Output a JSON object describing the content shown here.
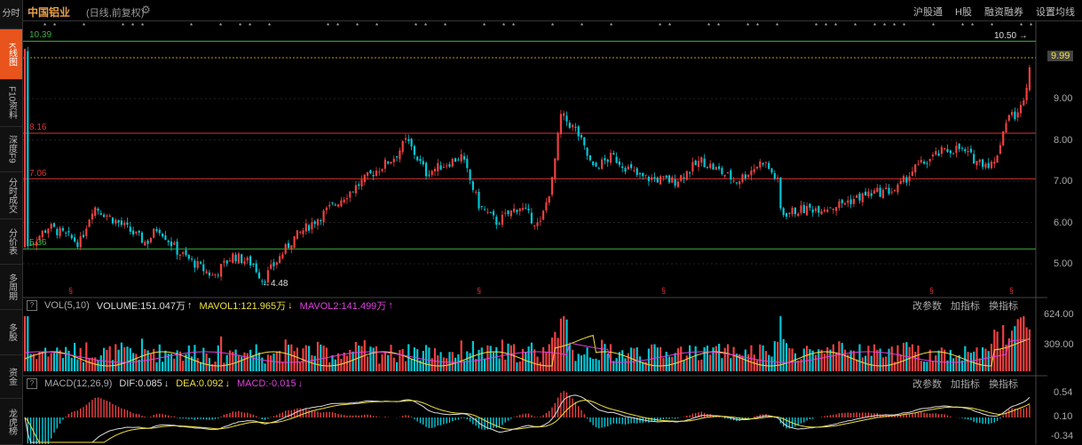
{
  "sidebar": {
    "items": [
      {
        "label": "分时",
        "active": false
      },
      {
        "label": "K线图",
        "active": true
      },
      {
        "label": "F10资料",
        "active": false
      },
      {
        "label": "深度F9",
        "active": false
      },
      {
        "label": "分时成交",
        "active": false
      },
      {
        "label": "分价表",
        "active": false
      },
      {
        "label": "多周期",
        "active": false
      },
      {
        "label": "多股",
        "active": false
      },
      {
        "label": "资金",
        "active": false
      },
      {
        "label": "龙虎榜",
        "active": false
      }
    ]
  },
  "header": {
    "stock_name": "中国铝业",
    "period_info": "(日线,前复权)",
    "right_items": [
      "沪股通",
      "H股",
      "融资融券",
      "设置均线"
    ]
  },
  "price_chart": {
    "y_ticks": [
      "9.00",
      "8.00",
      "7.00",
      "6.00",
      "5.00"
    ],
    "current_price": "9.99",
    "high_label": "10.50",
    "low_label": "4.48",
    "level_lines": [
      {
        "value": "10.39",
        "color": "#3cb043"
      },
      {
        "value": "8.16",
        "color": "#d33"
      },
      {
        "value": "7.06",
        "color": "#d33"
      },
      {
        "value": "5.36",
        "color": "#3cb043"
      }
    ]
  },
  "volume_panel": {
    "title": "VOL(5,10)",
    "volume": "VOLUME:151.047万",
    "mavol1": "MAVOL1:121.965万",
    "mavol2": "MAVOL2:141.499万",
    "y_ticks": [
      "624.00",
      "309.00"
    ],
    "buttons": [
      "改参数",
      "加指标",
      "换指标"
    ]
  },
  "macd_panel": {
    "title": "MACD(12,26,9)",
    "dif": "DIF:0.085",
    "dea": "DEA:0.092",
    "macd": "MACD:-0.015",
    "y_ticks": [
      "0.54",
      "0.10",
      "-0.34"
    ],
    "buttons": [
      "改参数",
      "加指标",
      "换指标"
    ]
  },
  "colors": {
    "up": "#f04040",
    "down": "#00c8d8",
    "title": "#e8a04a",
    "mavol1": "#f0e040",
    "mavol2": "#e040e0"
  }
}
